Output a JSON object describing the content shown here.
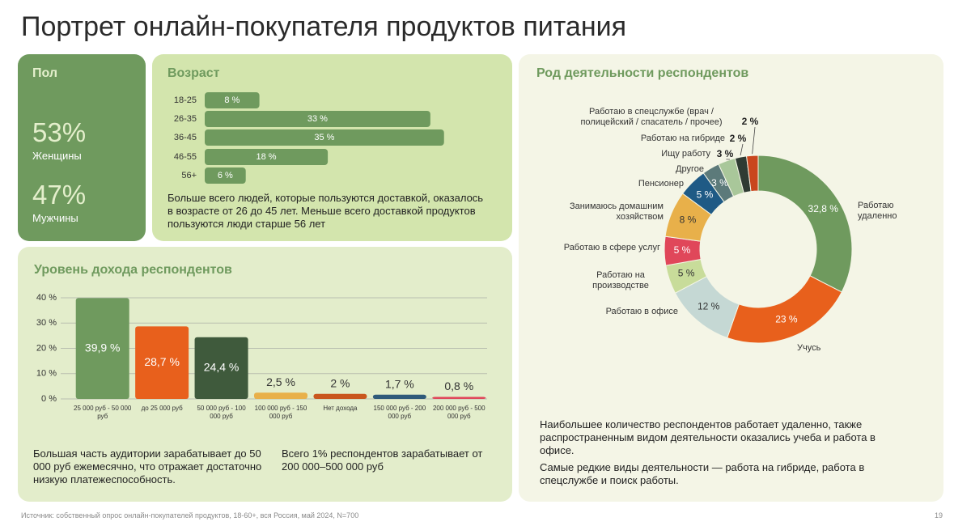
{
  "title": "Портрет онлайн-покупателя продуктов питания",
  "gender": {
    "title": "Пол",
    "items": [
      {
        "value": "53%",
        "label": "Женщины"
      },
      {
        "value": "47%",
        "label": "Мужчины"
      }
    ]
  },
  "chart_data": [
    {
      "type": "hbar",
      "title": "Возраст",
      "categories": [
        "18-25",
        "26-35",
        "36-45",
        "46-55",
        "56+"
      ],
      "values": [
        8,
        33,
        35,
        18,
        6
      ],
      "value_labels": [
        "8 %",
        "33 %",
        "35 %",
        "18 %",
        "6 %"
      ],
      "color": "#6f9a5e",
      "xlim": [
        0,
        40
      ],
      "note": "Больше всего людей, которые пользуются доставкой, оказалось в возрасте от 26 до 45 лет. Меньше всего доставкой продуктов пользуются люди старше 56 лет"
    },
    {
      "type": "bar",
      "title": "Уровень дохода респондентов",
      "categories": [
        "25 000 руб - 50 000 руб",
        "до 25 000 руб",
        "50 000 руб - 100 000 руб",
        "100 000 руб - 150 000 руб",
        "Нет дохода",
        "150 000 руб - 200 000 руб",
        "200 000 руб - 500 000 руб"
      ],
      "values": [
        39.9,
        28.7,
        24.4,
        2.5,
        2,
        1.7,
        0.8
      ],
      "value_labels": [
        "39,9 %",
        "28,7 %",
        "24,4 %",
        "2,5 %",
        "2 %",
        "1,7 %",
        "0,8 %"
      ],
      "colors": [
        "#6f9a5e",
        "#e8601c",
        "#3f5a3c",
        "#e8b04a",
        "#c9561e",
        "#2f5a7a",
        "#e0475a"
      ],
      "ylim": [
        0,
        40
      ],
      "yticks": [
        {
          "value": 0,
          "label": "0 %"
        },
        {
          "value": 10,
          "label": "10 %"
        },
        {
          "value": 20,
          "label": "20 %"
        },
        {
          "value": 30,
          "label": "30 %"
        },
        {
          "value": 40,
          "label": "40 %"
        }
      ],
      "grid": true,
      "notes": [
        "Большая часть аудитории зарабатывает до 50 000 руб ежемесячно, что отражает достаточно низкую платежеспособность.",
        "Всего 1% респондентов зарабатывает от 200 000–500 000 руб"
      ]
    },
    {
      "type": "donut",
      "title": "Род деятельности респондентов",
      "categories": [
        "Работаю удаленно",
        "Учусь",
        "Работаю в офисе",
        "Работаю на производстве",
        "Работаю в сфере услуг",
        "Занимаюсь домашним хозяйством",
        "Пенсионер",
        "Другое",
        "Ищу работу",
        "Работаю на гибриде",
        "Работаю в спецслужбе (врач / полицейский / спасатель / прочее)"
      ],
      "values": [
        32.8,
        23,
        12,
        5,
        5,
        8,
        5,
        3,
        3,
        2,
        2
      ],
      "value_labels": [
        "32,8 %",
        "23 %",
        "12 %",
        "5 %",
        "5 %",
        "8 %",
        "5 %",
        "3 %",
        "3 %",
        "2 %",
        "2 %"
      ],
      "colors": [
        "#6f9a5e",
        "#e8601c",
        "#c5d8d4",
        "#c8dc9a",
        "#e0475a",
        "#e8b04a",
        "#1f5a85",
        "#5c7a7a",
        "#a9c79a",
        "#2f3b33",
        "#c9461e"
      ],
      "notes": [
        "Наибольшее количество респондентов работает удаленно, также распространенным видом деятельности оказались учеба и работа в офисе.",
        "Самые редкие виды деятельности — работа на гибриде, работа в спецслужбе и поиск работы."
      ]
    }
  ],
  "footer": {
    "source": "Источник: собственный опрос онлайн-покупателей продуктов, 18-60+, вся Россия, май 2024, N=700",
    "page": "19"
  }
}
